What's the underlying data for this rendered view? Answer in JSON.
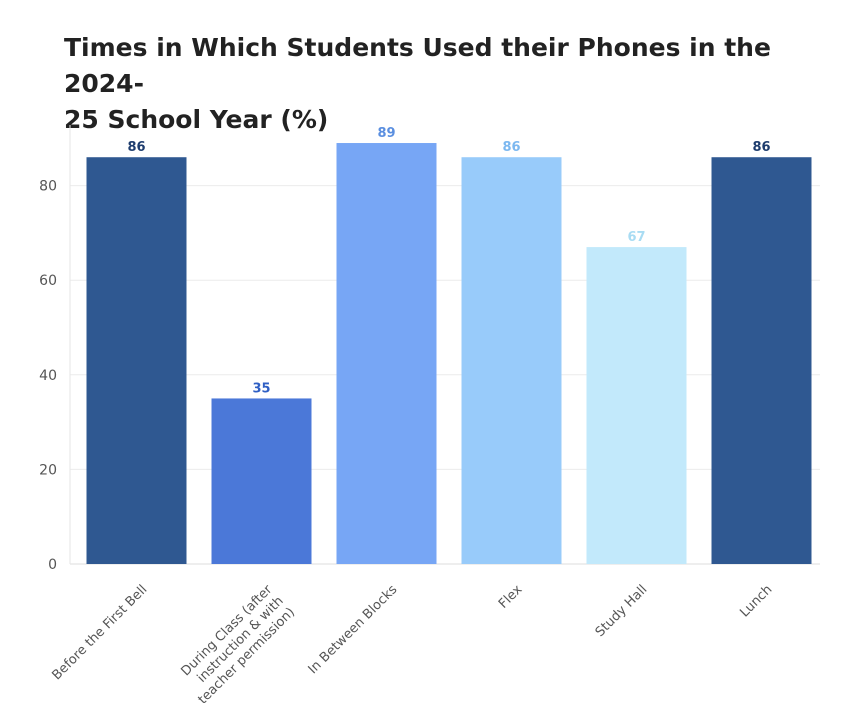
{
  "chart_data": {
    "type": "bar",
    "title_lines": [
      "Times in Which Students Used their Phones in the 2024-",
      "25 School Year (%)"
    ],
    "categories": [
      {
        "lines": [
          "Before the First Bell"
        ]
      },
      {
        "lines": [
          "During Class (after",
          "instruction & with",
          "teacher permission)"
        ]
      },
      {
        "lines": [
          "In Between Blocks"
        ]
      },
      {
        "lines": [
          "Flex"
        ]
      },
      {
        "lines": [
          "Study Hall"
        ]
      },
      {
        "lines": [
          "Lunch"
        ]
      }
    ],
    "values": [
      86,
      35,
      89,
      86,
      67,
      86
    ],
    "bar_colors": [
      "#2f5891",
      "#4b78d8",
      "#77a6f5",
      "#98cbfa",
      "#c2e9fb",
      "#2f5891"
    ],
    "label_colors": [
      "#1e3d6e",
      "#2f5fc4",
      "#5b8fe0",
      "#7cb8f0",
      "#a9dcf3",
      "#1e3d6e"
    ],
    "yticks": [
      0,
      20,
      40,
      60,
      80
    ],
    "ylim": [
      0,
      92
    ],
    "xlabel": "",
    "ylabel": "",
    "grid": true
  }
}
